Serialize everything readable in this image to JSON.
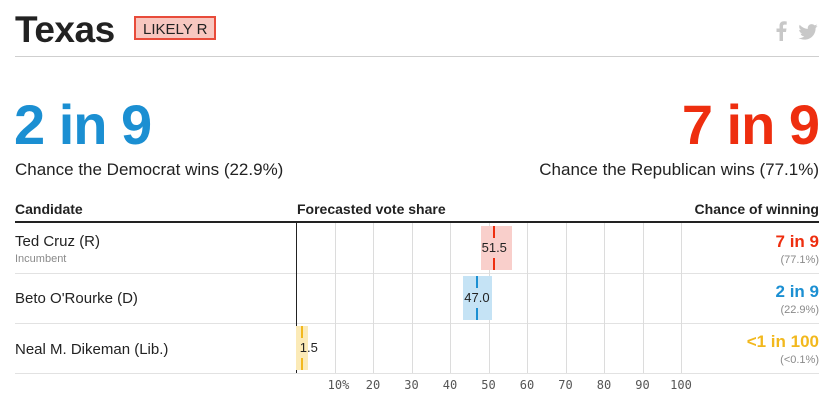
{
  "header": {
    "state": "Texas",
    "rating": "LIKELY R",
    "share_icons": [
      "facebook-icon",
      "twitter-icon"
    ]
  },
  "headline": {
    "dem_odds": "2 in 9",
    "dem_caption": "Chance the Democrat wins (22.9%)",
    "rep_odds": "7 in 9",
    "rep_caption": "Chance the Republican wins (77.1%)"
  },
  "colors": {
    "dem": "#1b8fd2",
    "rep": "#ee2e0f",
    "lib": "#f2b81d",
    "rep_band": "#f9cfcb",
    "dem_band": "#c5e3f5",
    "lib_band": "#fbeab7"
  },
  "table": {
    "headers": {
      "candidate": "Candidate",
      "vote_share": "Forecasted vote share",
      "chance": "Chance of winning"
    },
    "rows": [
      {
        "name": "Ted Cruz (R)",
        "sub": "Incumbent",
        "vote_share_label": "51.5",
        "chance": "7 in 9",
        "chance_pct": "(77.1%)"
      },
      {
        "name": "Beto O'Rourke (D)",
        "sub": "",
        "vote_share_label": "47.0",
        "chance": "2 in 9",
        "chance_pct": "(22.9%)"
      },
      {
        "name": "Neal M. Dikeman (Lib.)",
        "sub": "",
        "vote_share_label": "1.5",
        "chance": "<1 in 100",
        "chance_pct": "(<0.1%)"
      }
    ]
  },
  "chart_data": {
    "type": "bar",
    "categories": [
      "Ted Cruz (R)",
      "Beto O'Rourke (D)",
      "Neal M. Dikeman (Lib.)"
    ],
    "values": [
      51.5,
      47.0,
      1.5
    ],
    "ranges": [
      [
        48,
        56
      ],
      [
        43.5,
        51
      ],
      [
        0,
        3
      ]
    ],
    "xlim": [
      0,
      105
    ],
    "x_ticks": [
      "10%",
      "20",
      "30",
      "40",
      "50",
      "60",
      "70",
      "80",
      "90",
      "100"
    ],
    "x_tick_values": [
      10,
      20,
      30,
      40,
      50,
      60,
      70,
      80,
      90,
      100
    ],
    "grid": true
  }
}
